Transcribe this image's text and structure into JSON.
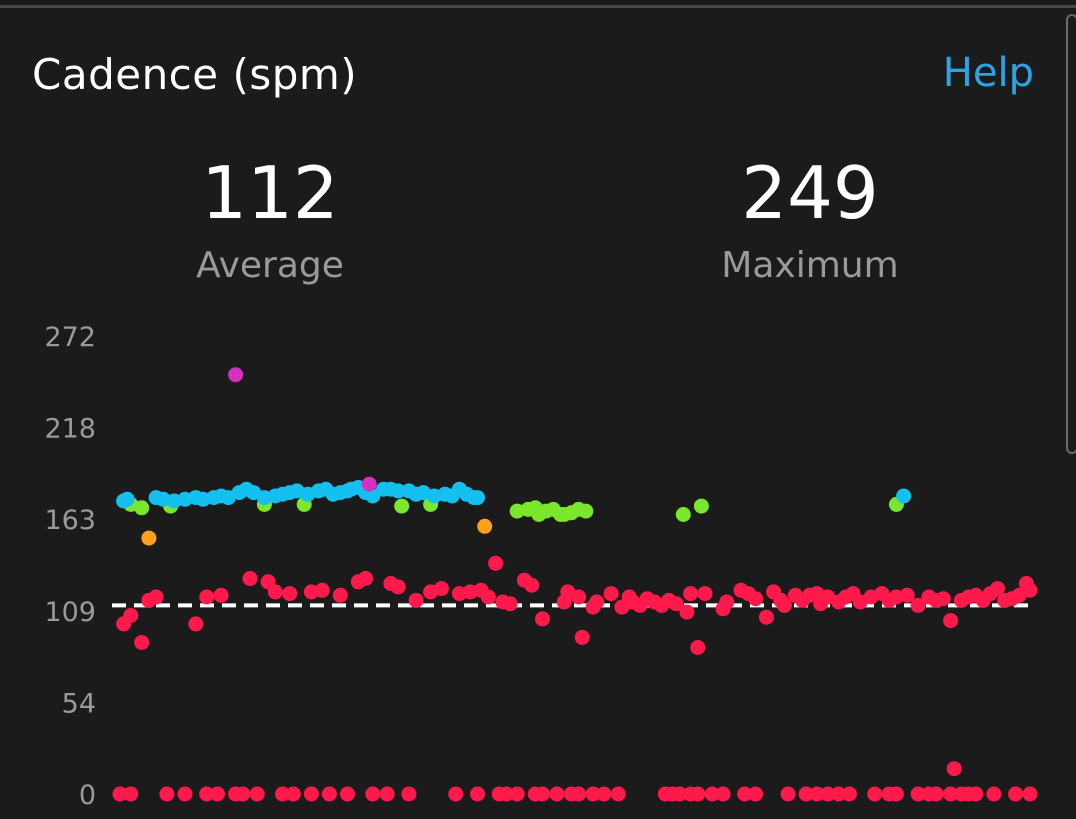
{
  "header": {
    "title": "Cadence (spm)",
    "help_label": "Help"
  },
  "stats": {
    "average": {
      "value": "112",
      "label": "Average"
    },
    "maximum": {
      "value": "249",
      "label": "Maximum"
    }
  },
  "colors": {
    "background": "#1b1b1b",
    "help_link": "#2aa4e6",
    "red": "#ff1a4b",
    "green": "#7ae62c",
    "blue": "#14c0f0",
    "orange": "#ff9f1c",
    "purple": "#d431c0",
    "reference_line": "#ffffff"
  },
  "chart_data": {
    "type": "scatter",
    "ylim": [
      0,
      272
    ],
    "y_ticks": [
      "272",
      "218",
      "163",
      "109",
      "54",
      "0"
    ],
    "xlabel": "",
    "ylabel": "",
    "grid": false,
    "reference_line": {
      "value": 112,
      "style": "dashed"
    },
    "series": [
      {
        "color_key": "red",
        "points": [
          [
            0.5,
            101
          ],
          [
            1.5,
            106
          ],
          [
            3.0,
            90
          ],
          [
            4.0,
            115
          ],
          [
            5.0,
            117
          ],
          [
            10.5,
            101
          ],
          [
            12.0,
            117
          ],
          [
            14.0,
            118
          ],
          [
            18.0,
            128
          ],
          [
            20.5,
            126
          ],
          [
            21.5,
            120
          ],
          [
            23.5,
            119
          ],
          [
            26.5,
            120
          ],
          [
            28.0,
            121
          ],
          [
            30.5,
            118
          ],
          [
            33.0,
            126
          ],
          [
            34.0,
            128
          ],
          [
            37.5,
            125
          ],
          [
            38.5,
            123
          ],
          [
            41.0,
            115
          ],
          [
            43.0,
            120
          ],
          [
            44.5,
            122
          ],
          [
            47.0,
            119
          ],
          [
            48.5,
            120
          ],
          [
            50.0,
            121
          ],
          [
            51.0,
            117
          ],
          [
            52.0,
            137
          ],
          [
            53.0,
            114
          ],
          [
            54.0,
            113
          ],
          [
            56.0,
            127
          ],
          [
            57.0,
            124
          ],
          [
            58.5,
            104
          ],
          [
            61.5,
            114
          ],
          [
            62.0,
            120
          ],
          [
            63.5,
            117
          ],
          [
            64.0,
            93
          ],
          [
            65.5,
            111
          ],
          [
            66.0,
            114
          ],
          [
            68.0,
            119
          ],
          [
            69.5,
            111
          ],
          [
            70.5,
            117
          ],
          [
            71.0,
            114
          ],
          [
            72.0,
            112
          ],
          [
            73.0,
            116
          ],
          [
            74.0,
            114
          ],
          [
            75.0,
            112
          ],
          [
            76.0,
            115
          ],
          [
            77.0,
            113
          ],
          [
            78.5,
            108
          ],
          [
            79.0,
            119
          ],
          [
            80.0,
            87
          ],
          [
            81.0,
            119
          ],
          [
            83.5,
            110
          ],
          [
            84.0,
            114
          ],
          [
            86.0,
            121
          ],
          [
            87.0,
            119
          ],
          [
            88.0,
            116
          ],
          [
            89.5,
            105
          ],
          [
            90.5,
            120
          ],
          [
            91.5,
            115
          ],
          [
            92.0,
            112
          ],
          [
            93.5,
            118
          ],
          [
            94.5,
            115
          ],
          [
            95.5,
            118
          ],
          [
            96.5,
            119
          ],
          [
            97.0,
            113
          ],
          [
            98.0,
            117
          ],
          [
            99.5,
            114
          ],
          [
            100.5,
            117
          ],
          [
            101.5,
            119
          ],
          [
            102.5,
            114
          ],
          [
            104.0,
            117
          ],
          [
            105.5,
            119
          ],
          [
            106.5,
            115
          ],
          [
            107.5,
            117
          ],
          [
            109.0,
            118
          ],
          [
            110.5,
            112
          ],
          [
            112.0,
            117
          ],
          [
            113.0,
            115
          ],
          [
            114.0,
            116
          ],
          [
            115.0,
            103
          ],
          [
            115.5,
            15
          ],
          [
            116.5,
            115
          ],
          [
            117.5,
            117
          ],
          [
            118.5,
            118
          ],
          [
            119.5,
            115
          ],
          [
            120.5,
            119
          ],
          [
            121.5,
            122
          ],
          [
            122.5,
            115
          ],
          [
            123.5,
            116
          ],
          [
            124.5,
            118
          ],
          [
            125.5,
            125
          ],
          [
            126.0,
            121
          ],
          [
            0,
            0
          ],
          [
            1.5,
            0
          ],
          [
            6.5,
            0
          ],
          [
            9.0,
            0
          ],
          [
            12.0,
            0
          ],
          [
            13.5,
            0
          ],
          [
            16.0,
            0
          ],
          [
            17.0,
            0
          ],
          [
            19.0,
            0
          ],
          [
            22.5,
            0
          ],
          [
            24.0,
            0
          ],
          [
            26.5,
            0
          ],
          [
            29.0,
            0
          ],
          [
            31.5,
            0
          ],
          [
            35.0,
            0
          ],
          [
            37.0,
            0
          ],
          [
            40.0,
            0
          ],
          [
            46.5,
            0
          ],
          [
            49.5,
            0
          ],
          [
            52.5,
            0
          ],
          [
            53.5,
            0
          ],
          [
            55.0,
            0
          ],
          [
            57.5,
            0
          ],
          [
            58.5,
            0
          ],
          [
            60.5,
            0
          ],
          [
            62.5,
            0
          ],
          [
            63.5,
            0
          ],
          [
            65.5,
            0
          ],
          [
            67.0,
            0
          ],
          [
            69.0,
            0
          ],
          [
            75.5,
            0
          ],
          [
            76.5,
            0
          ],
          [
            77.5,
            0
          ],
          [
            79.0,
            0
          ],
          [
            80.0,
            0
          ],
          [
            82.0,
            0
          ],
          [
            83.5,
            0
          ],
          [
            86.5,
            0
          ],
          [
            88.0,
            0
          ],
          [
            92.5,
            0
          ],
          [
            95.0,
            0
          ],
          [
            96.5,
            0
          ],
          [
            98.0,
            0
          ],
          [
            99.5,
            0
          ],
          [
            101.0,
            0
          ],
          [
            104.5,
            0
          ],
          [
            106.5,
            0
          ],
          [
            107.5,
            0
          ],
          [
            110.5,
            0
          ],
          [
            112.0,
            0
          ],
          [
            113.0,
            0
          ],
          [
            115.0,
            0
          ],
          [
            116.5,
            0
          ],
          [
            117.5,
            0
          ],
          [
            118.5,
            0
          ],
          [
            121.0,
            0
          ],
          [
            124.0,
            0
          ],
          [
            126.0,
            0
          ]
        ]
      },
      {
        "color_key": "green",
        "points": [
          [
            1.5,
            172
          ],
          [
            3.0,
            170
          ],
          [
            7.0,
            171
          ],
          [
            20.0,
            172
          ],
          [
            25.5,
            172
          ],
          [
            39.0,
            171
          ],
          [
            43.0,
            172
          ],
          [
            55.0,
            168
          ],
          [
            56.5,
            169
          ],
          [
            57.5,
            170
          ],
          [
            58.0,
            166
          ],
          [
            59.0,
            168
          ],
          [
            60.0,
            169
          ],
          [
            61.0,
            166
          ],
          [
            61.5,
            166
          ],
          [
            62.5,
            167
          ],
          [
            63.5,
            169
          ],
          [
            64.5,
            168
          ],
          [
            78.0,
            166
          ],
          [
            80.5,
            171
          ],
          [
            107.5,
            172
          ]
        ]
      },
      {
        "color_key": "blue",
        "points": [
          [
            0.5,
            174
          ],
          [
            1.0,
            175
          ],
          [
            5.0,
            176
          ],
          [
            6.0,
            175
          ],
          [
            7.5,
            174
          ],
          [
            9.0,
            175
          ],
          [
            10.5,
            176
          ],
          [
            11.5,
            175
          ],
          [
            13.0,
            176
          ],
          [
            14.0,
            177
          ],
          [
            15.0,
            176
          ],
          [
            16.5,
            179
          ],
          [
            17.5,
            181
          ],
          [
            18.5,
            179
          ],
          [
            20.0,
            176
          ],
          [
            21.5,
            177
          ],
          [
            22.5,
            178
          ],
          [
            23.5,
            179
          ],
          [
            24.5,
            180
          ],
          [
            26.0,
            178
          ],
          [
            27.5,
            180
          ],
          [
            28.5,
            181
          ],
          [
            29.5,
            178
          ],
          [
            30.5,
            179
          ],
          [
            31.5,
            180
          ],
          [
            32.0,
            181
          ],
          [
            33.0,
            182
          ],
          [
            34.0,
            179
          ],
          [
            35.0,
            177
          ],
          [
            36.5,
            181
          ],
          [
            37.5,
            181
          ],
          [
            38.5,
            180
          ],
          [
            40.0,
            180
          ],
          [
            41.0,
            178
          ],
          [
            42.0,
            179
          ],
          [
            43.5,
            177
          ],
          [
            45.0,
            178
          ],
          [
            46.0,
            177
          ],
          [
            47.0,
            181
          ],
          [
            48.0,
            178
          ],
          [
            49.0,
            176
          ],
          [
            49.5,
            176
          ],
          [
            108.5,
            177
          ]
        ]
      },
      {
        "color_key": "orange",
        "points": [
          [
            4.0,
            152
          ],
          [
            50.5,
            159
          ]
        ]
      },
      {
        "color_key": "purple",
        "points": [
          [
            16.0,
            249
          ],
          [
            34.5,
            184
          ]
        ]
      }
    ]
  }
}
